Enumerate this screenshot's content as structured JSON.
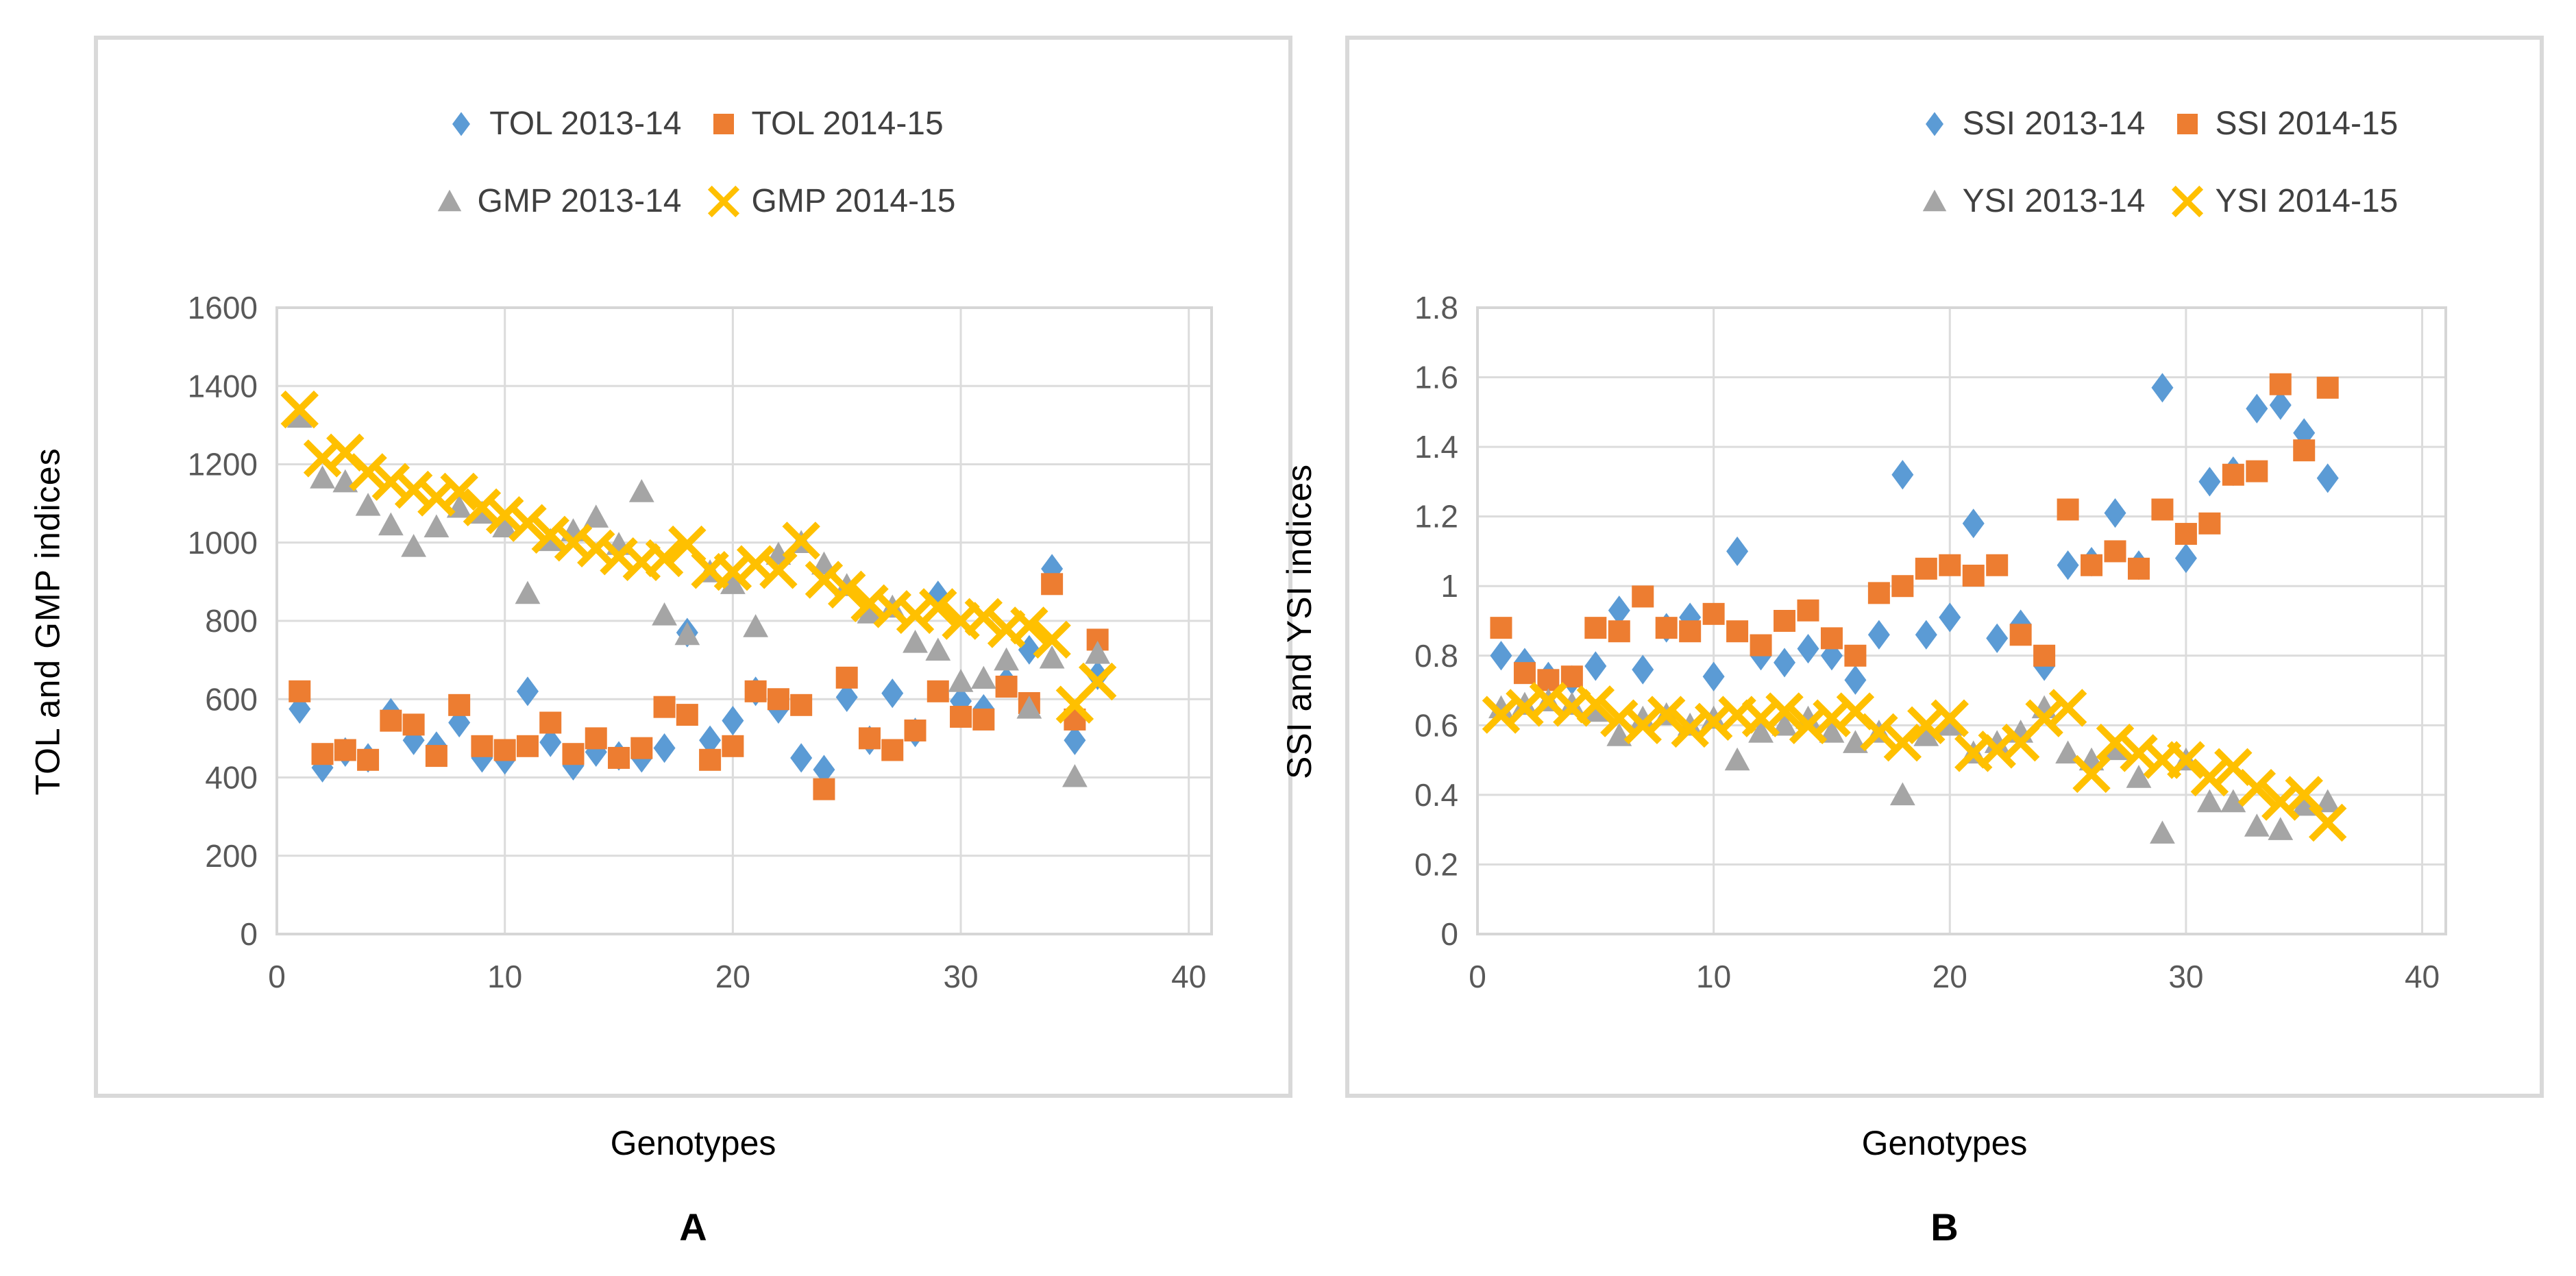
{
  "figure": {
    "background": "#ffffff"
  },
  "style": {
    "grid_color": "#dcdcdc",
    "border_color": "#d6d6d6",
    "tick_color": "#595959",
    "legend_text_color": "#404040"
  },
  "chart_data": [
    {
      "type": "scatter",
      "caption": "A",
      "xlabel": "Genotypes",
      "ylabel": "TOL and GMP indices",
      "xlim": [
        0,
        41
      ],
      "ylim": [
        0,
        1600
      ],
      "xticks": [
        0,
        10,
        20,
        30,
        40
      ],
      "ytick_step": 200,
      "grid": true,
      "legend_position": "top-center-two-rows",
      "x": [
        1,
        2,
        3,
        4,
        5,
        6,
        7,
        8,
        9,
        10,
        11,
        12,
        13,
        14,
        15,
        16,
        17,
        18,
        19,
        20,
        21,
        22,
        23,
        24,
        25,
        26,
        27,
        28,
        29,
        30,
        31,
        32,
        33,
        34,
        35,
        36
      ],
      "series": [
        {
          "name": "TOL 2013-14",
          "marker": "diamond",
          "color": "#5b9bd5",
          "values": [
            575,
            425,
            465,
            450,
            565,
            495,
            480,
            540,
            450,
            445,
            620,
            490,
            430,
            465,
            455,
            450,
            475,
            770,
            495,
            545,
            620,
            575,
            450,
            420,
            605,
            495,
            615,
            515,
            865,
            595,
            575,
            645,
            726,
            933,
            495,
            661
          ]
        },
        {
          "name": "TOL 2014-15",
          "marker": "square",
          "color": "#ed7d31",
          "values": [
            620,
            460,
            470,
            445,
            545,
            535,
            455,
            585,
            480,
            470,
            480,
            540,
            460,
            500,
            450,
            475,
            580,
            560,
            445,
            480,
            620,
            600,
            585,
            370,
            655,
            500,
            470,
            520,
            620,
            555,
            548,
            632,
            590,
            894,
            548,
            752
          ]
        },
        {
          "name": "GMP 2013-14",
          "marker": "triangle",
          "color": "#a5a5a5",
          "values": [
            1320,
            1165,
            1155,
            1095,
            1045,
            990,
            1040,
            1090,
            1075,
            1040,
            870,
            1005,
            1030,
            1065,
            995,
            1130,
            815,
            765,
            925,
            895,
            785,
            970,
            1000,
            945,
            890,
            820,
            835,
            745,
            725,
            645,
            653,
            700,
            577,
            705,
            402,
            717
          ]
        },
        {
          "name": "GMP 2014-15",
          "marker": "xmark",
          "color": "#ffc000",
          "values": [
            1340,
            1215,
            1230,
            1180,
            1155,
            1135,
            1115,
            1130,
            1090,
            1070,
            1050,
            1020,
            1000,
            985,
            965,
            950,
            960,
            995,
            930,
            925,
            945,
            930,
            1005,
            905,
            880,
            845,
            830,
            815,
            835,
            800,
            810,
            779,
            788,
            752,
            586,
            645
          ]
        }
      ]
    },
    {
      "type": "scatter",
      "caption": "B",
      "xlabel": "Genotypes",
      "ylabel": "SSI and YSI indices",
      "xlim": [
        0,
        41
      ],
      "ylim": [
        0,
        1.8
      ],
      "xticks": [
        0,
        10,
        20,
        30,
        40
      ],
      "ytick_step": 0.2,
      "grid": true,
      "legend_position": "top-center-two-rows",
      "x": [
        1,
        2,
        3,
        4,
        5,
        6,
        7,
        8,
        9,
        10,
        11,
        12,
        13,
        14,
        15,
        16,
        17,
        18,
        19,
        20,
        21,
        22,
        23,
        24,
        25,
        26,
        27,
        28,
        29,
        30,
        31,
        32,
        33,
        34,
        35,
        36
      ],
      "series": [
        {
          "name": "SSI 2013-14",
          "marker": "diamond",
          "color": "#5b9bd5",
          "values": [
            0.8,
            0.78,
            0.74,
            0.73,
            0.77,
            0.93,
            0.76,
            0.88,
            0.91,
            0.74,
            1.1,
            0.8,
            0.78,
            0.82,
            0.8,
            0.73,
            0.86,
            1.32,
            0.86,
            0.91,
            1.18,
            0.85,
            0.89,
            0.77,
            1.06,
            1.07,
            1.21,
            1.06,
            1.57,
            1.08,
            1.3,
            1.33,
            1.51,
            1.52,
            1.44,
            1.31
          ]
        },
        {
          "name": "SSI 2014-15",
          "marker": "square",
          "color": "#ed7d31",
          "values": [
            0.88,
            0.75,
            0.73,
            0.74,
            0.88,
            0.87,
            0.97,
            0.88,
            0.87,
            0.92,
            0.87,
            0.83,
            0.9,
            0.93,
            0.85,
            0.8,
            0.98,
            1.0,
            1.05,
            1.06,
            1.03,
            1.06,
            0.86,
            0.8,
            1.22,
            1.06,
            1.1,
            1.05,
            1.22,
            1.15,
            1.18,
            1.32,
            1.33,
            1.58,
            1.39,
            1.57
          ]
        },
        {
          "name": "YSI 2013-14",
          "marker": "triangle",
          "color": "#a5a5a5",
          "values": [
            0.65,
            0.66,
            0.67,
            0.66,
            0.64,
            0.57,
            0.62,
            0.63,
            0.6,
            0.62,
            0.5,
            0.58,
            0.6,
            0.62,
            0.58,
            0.55,
            0.58,
            0.4,
            0.57,
            0.6,
            0.52,
            0.55,
            0.58,
            0.65,
            0.52,
            0.5,
            0.53,
            0.45,
            0.29,
            0.5,
            0.38,
            0.38,
            0.31,
            0.3,
            0.37,
            0.38
          ]
        },
        {
          "name": "YSI 2014-15",
          "marker": "xmark",
          "color": "#ffc000",
          "values": [
            0.63,
            0.65,
            0.67,
            0.65,
            0.66,
            0.62,
            0.6,
            0.63,
            0.59,
            0.61,
            0.63,
            0.62,
            0.64,
            0.6,
            0.62,
            0.64,
            0.58,
            0.55,
            0.6,
            0.62,
            0.52,
            0.53,
            0.55,
            0.62,
            0.65,
            0.46,
            0.55,
            0.52,
            0.5,
            0.5,
            0.45,
            0.48,
            0.42,
            0.38,
            0.4,
            0.32
          ]
        }
      ]
    }
  ]
}
